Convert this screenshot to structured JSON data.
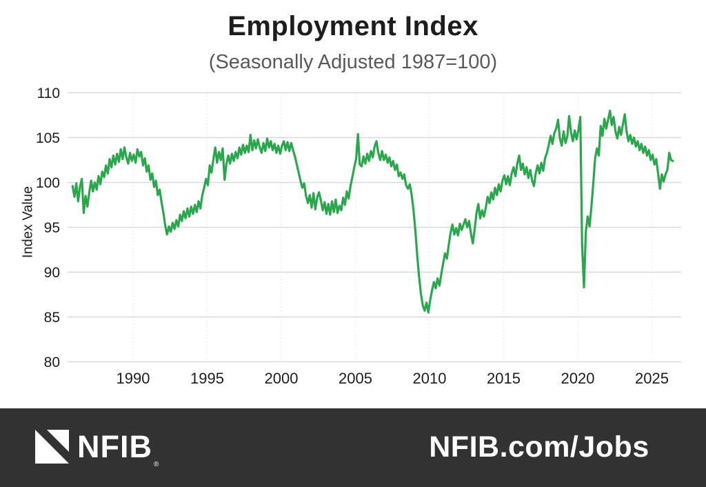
{
  "page": {
    "background": "#ffffff"
  },
  "chart_data": {
    "type": "line",
    "title": "Employment Index",
    "subtitle": "(Seasonally Adjusted 1987=100)",
    "ylabel": "Index Value",
    "xlabel": "",
    "line_color": "#2aa74d",
    "grid_color": "#d9d9d9",
    "grid_minor_color": "#e3e3e3",
    "tick_color": "#1d1d1d",
    "xlim": [
      1985.92,
      2026.42
    ],
    "ylim": [
      80,
      110
    ],
    "yticks": [
      80,
      85,
      90,
      95,
      100,
      105,
      110
    ],
    "xticks": [
      1990,
      1995,
      2000,
      2005,
      2010,
      2015,
      2020,
      2025
    ],
    "grid": "horizontal solid, vertical dotted",
    "legend": "none",
    "series": [
      {
        "name": "Employment Index (Seasonally Adjusted, 1987=100)",
        "x_start": 1985.92,
        "x_step": 0.125,
        "values": [
          99.6,
          98.4,
          99.9,
          97.9,
          99.5,
          100.4,
          96.6,
          98.5,
          97.3,
          98.9,
          100.2,
          99.0,
          100.0,
          99.2,
          100.7,
          99.8,
          101.2,
          100.6,
          101.9,
          101.0,
          102.6,
          101.7,
          103.0,
          102.0,
          103.2,
          102.3,
          103.7,
          102.6,
          103.9,
          102.8,
          102.1,
          103.3,
          102.4,
          103.1,
          102.2,
          103.7,
          102.9,
          103.4,
          101.9,
          102.7,
          101.2,
          101.9,
          100.3,
          101.0,
          99.5,
          100.2,
          98.6,
          99.2,
          97.8,
          96.6,
          95.2,
          94.2,
          95.1,
          94.5,
          95.5,
          94.8,
          95.8,
          95.1,
          96.4,
          95.7,
          96.8,
          96.0,
          97.1,
          96.2,
          97.3,
          96.5,
          97.5,
          96.7,
          97.9,
          97.1,
          98.6,
          99.4,
          100.4,
          99.7,
          101.9,
          101.1,
          102.6,
          103.9,
          102.2,
          103.4,
          102.5,
          103.8,
          100.3,
          102.0,
          103.0,
          102.1,
          103.2,
          102.4,
          103.4,
          102.7,
          103.9,
          103.1,
          104.2,
          103.3,
          104.1,
          103.4,
          105.3,
          103.6,
          104.7,
          103.8,
          104.8,
          103.9,
          103.3,
          104.4,
          103.5,
          104.9,
          103.9,
          104.6,
          103.6,
          104.3,
          103.3,
          104.1,
          103.2,
          104.1,
          104.6,
          103.6,
          104.5,
          103.5,
          104.4,
          103.6,
          102.9,
          102.0,
          101.1,
          100.2,
          99.4,
          99.9,
          98.5,
          97.7,
          98.6,
          97.2,
          98.8,
          97.0,
          98.3,
          98.9,
          98.0,
          96.9,
          97.8,
          96.5,
          97.6,
          96.4,
          97.9,
          96.7,
          98.1,
          96.6,
          97.4,
          96.9,
          98.3,
          97.5,
          99.0,
          98.2,
          99.6,
          100.6,
          101.7,
          102.6,
          105.4,
          102.0,
          101.8,
          102.9,
          102.1,
          103.2,
          102.4,
          103.5,
          102.8,
          104.0,
          104.6,
          103.3,
          102.5,
          103.5,
          102.5,
          103.1,
          102.2,
          102.8,
          101.8,
          102.4,
          101.4,
          102.0,
          100.7,
          101.1,
          100.4,
          100.9,
          99.7,
          99.3,
          99.8,
          98.6,
          96.9,
          94.6,
          91.8,
          89.5,
          87.6,
          86.3,
          85.7,
          86.6,
          85.5,
          86.9,
          88.0,
          88.9,
          88.2,
          89.3,
          88.5,
          89.8,
          91.0,
          92.1,
          91.5,
          93.0,
          94.4,
          95.3,
          94.2,
          94.9,
          94.1,
          95.4,
          94.7,
          95.3,
          95.9,
          95.0,
          95.7,
          94.3,
          93.2,
          94.8,
          96.6,
          97.6,
          96.0,
          96.9,
          96.2,
          97.2,
          98.4,
          97.7,
          98.9,
          98.1,
          99.4,
          98.6,
          99.8,
          99.0,
          100.2,
          100.8,
          99.8,
          100.7,
          99.7,
          101.0,
          101.7,
          100.7,
          102.1,
          103.0,
          101.4,
          102.1,
          100.9,
          101.7,
          100.5,
          101.4,
          100.2,
          99.6,
          101.1,
          101.9,
          101.0,
          102.2,
          101.3,
          102.7,
          103.3,
          104.2,
          105.2,
          104.3,
          105.5,
          106.0,
          107.0,
          104.9,
          104.1,
          105.7,
          104.4,
          105.1,
          107.4,
          105.6,
          104.6,
          105.8,
          104.8,
          105.9,
          107.3,
          93.0,
          88.3,
          94.5,
          96.2,
          95.1,
          97.3,
          99.9,
          102.7,
          103.8,
          103.0,
          106.3,
          105.2,
          107.1,
          106.0,
          107.0,
          108.0,
          106.4,
          107.3,
          105.7,
          104.9,
          106.2,
          105.3,
          106.5,
          107.6,
          105.7,
          104.6,
          105.3,
          104.3,
          105.0,
          104.0,
          104.6,
          103.6,
          104.3,
          103.3,
          104.0,
          103.0,
          103.6,
          102.5,
          103.1,
          102.0,
          102.6,
          101.0,
          99.3,
          100.9,
          100.1,
          100.9,
          101.4,
          103.3,
          102.5,
          102.4
        ]
      }
    ]
  },
  "footer": {
    "brand": "NFIB",
    "registered_mark": "®",
    "url": "NFIB.com/Jobs",
    "background": "#323232",
    "text_color": "#ffffff",
    "logo_color": "#ffffff"
  }
}
